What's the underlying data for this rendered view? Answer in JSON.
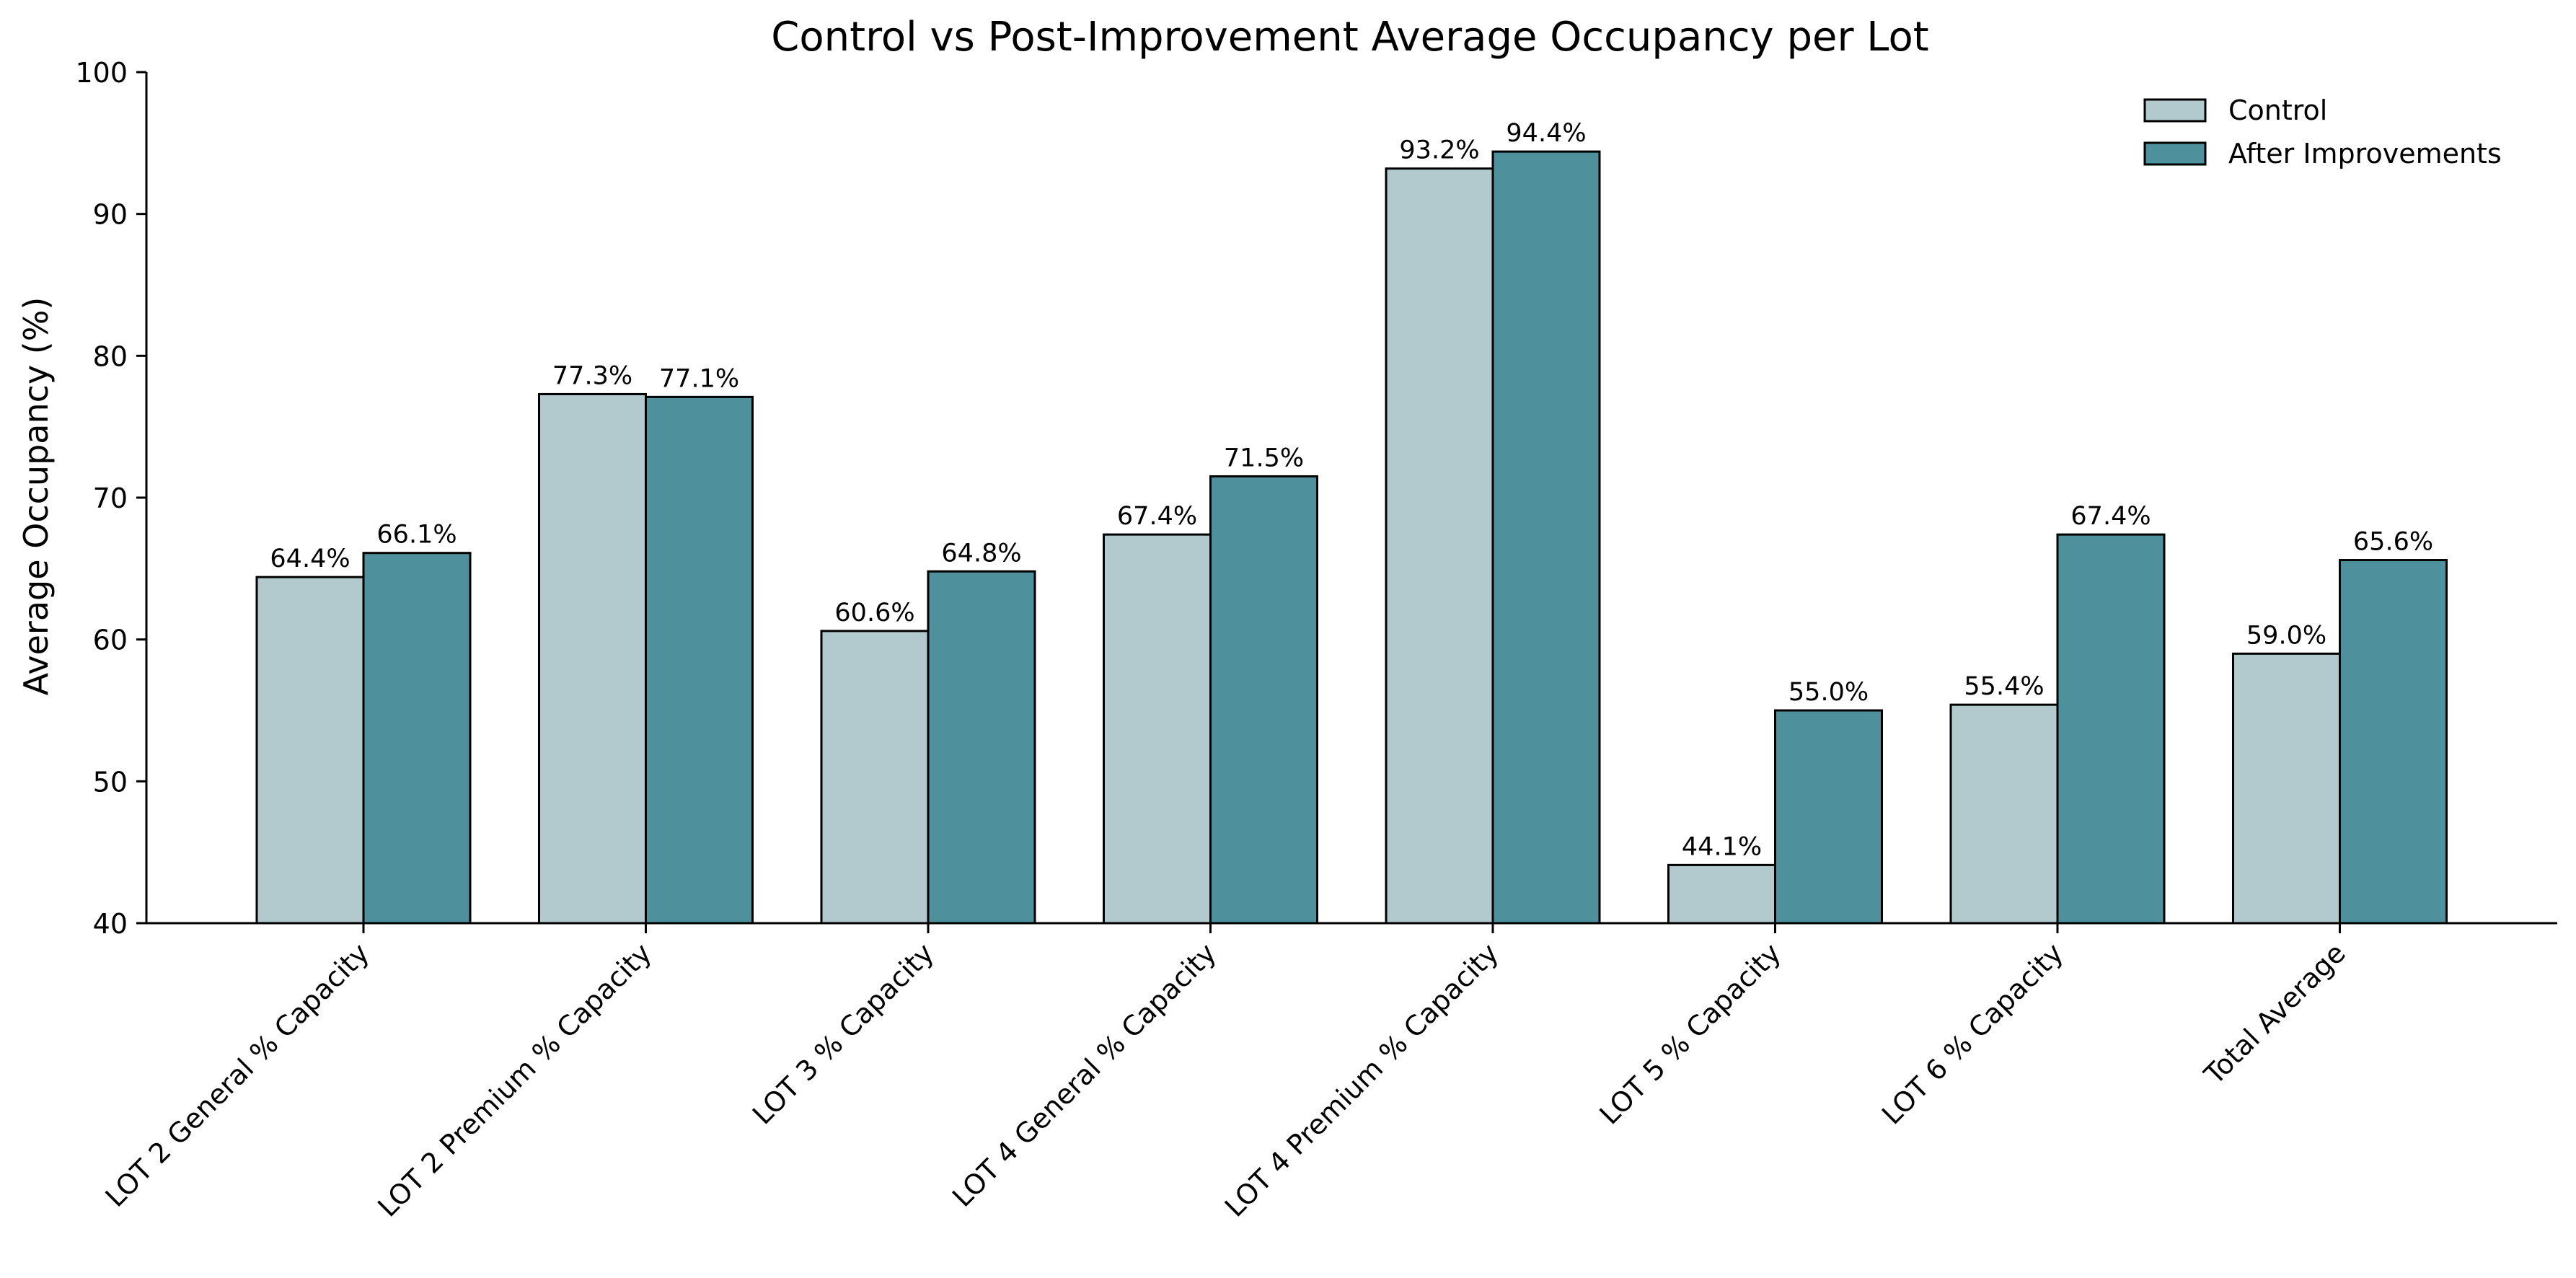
{
  "chart_data": {
    "type": "bar",
    "title": "Control vs Post-Improvement Average Occupancy per Lot",
    "xlabel": "",
    "ylabel": "Average Occupancy (%)",
    "ylim": [
      40,
      100
    ],
    "yticks": [
      "40",
      "50",
      "60",
      "70",
      "80",
      "90",
      "100"
    ],
    "grid": false,
    "legend_position": "top-right",
    "categories": [
      "LOT 2 General % Capacity",
      "LOT 2 Premium % Capacity",
      "LOT 3 % Capacity",
      "LOT 4 General % Capacity",
      "LOT 4 Premium % Capacity",
      "LOT 5 % Capacity",
      "LOT 6 % Capacity",
      "Total Average"
    ],
    "series": [
      {
        "name": "Control",
        "color": "#b2cacd",
        "values": [
          64.4,
          77.3,
          60.6,
          67.4,
          93.2,
          44.1,
          55.4,
          59.0
        ],
        "labels": [
          "64.4%",
          "77.3%",
          "60.6%",
          "67.4%",
          "93.2%",
          "44.1%",
          "55.4%",
          "59.0%"
        ]
      },
      {
        "name": "After Improvements",
        "color": "#4e909c",
        "values": [
          66.1,
          77.1,
          64.8,
          71.5,
          94.4,
          55.0,
          67.4,
          65.6
        ],
        "labels": [
          "66.1%",
          "77.1%",
          "64.8%",
          "71.5%",
          "94.4%",
          "55.0%",
          "67.4%",
          "65.6%"
        ]
      }
    ]
  }
}
